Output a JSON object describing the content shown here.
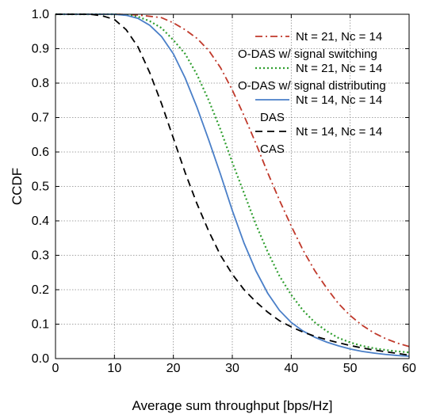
{
  "chart_data": {
    "type": "line",
    "xlabel": "Average sum throughput [bps/Hz]",
    "ylabel": "CCDF",
    "xlim": [
      0,
      60
    ],
    "ylim": [
      0,
      1
    ],
    "xticks": [
      "0",
      "10",
      "20",
      "30",
      "40",
      "50",
      "60"
    ],
    "yticks": [
      "0.0",
      "0.1",
      "0.2",
      "0.3",
      "0.4",
      "0.5",
      "0.6",
      "0.7",
      "0.8",
      "0.9",
      "1.0"
    ],
    "grid": true,
    "legend_position": "top-right",
    "series": [
      {
        "name": "Nt = 21, Nc = 14",
        "label": "O-DAS w/ signal switching",
        "color": "#c0392b",
        "dash": "dashdot",
        "x": [
          0,
          10,
          14,
          18,
          20,
          22,
          24,
          26,
          28,
          30,
          32,
          34,
          36,
          38,
          40,
          42,
          44,
          46,
          48,
          50,
          52,
          54,
          56,
          58,
          60
        ],
        "y": [
          1.0,
          1.0,
          0.998,
          0.99,
          0.975,
          0.955,
          0.93,
          0.895,
          0.845,
          0.78,
          0.705,
          0.625,
          0.54,
          0.46,
          0.385,
          0.315,
          0.255,
          0.205,
          0.16,
          0.125,
          0.097,
          0.075,
          0.058,
          0.045,
          0.035
        ]
      },
      {
        "name": "Nt = 21, Nc = 14",
        "label": "O-DAS w/ signal distributing",
        "color": "#2e9e2e",
        "dash": "dotted",
        "x": [
          0,
          10,
          12,
          14,
          16,
          18,
          20,
          22,
          24,
          26,
          28,
          30,
          32,
          34,
          36,
          38,
          40,
          42,
          44,
          46,
          48,
          50,
          52,
          54,
          56,
          58,
          60
        ],
        "y": [
          1.0,
          1.0,
          0.998,
          0.993,
          0.98,
          0.96,
          0.925,
          0.885,
          0.825,
          0.75,
          0.665,
          0.57,
          0.48,
          0.39,
          0.31,
          0.24,
          0.185,
          0.14,
          0.105,
          0.08,
          0.06,
          0.047,
          0.037,
          0.03,
          0.025,
          0.021,
          0.018
        ]
      },
      {
        "name": "Nt = 14, Nc = 14",
        "label": "DAS",
        "color": "#4a7fc8",
        "dash": "solid",
        "x": [
          0,
          10,
          12,
          14,
          16,
          18,
          20,
          22,
          24,
          26,
          28,
          30,
          32,
          34,
          36,
          38,
          40,
          42,
          44,
          46,
          48,
          50,
          52,
          54,
          56,
          58,
          60
        ],
        "y": [
          1.0,
          1.0,
          0.997,
          0.988,
          0.968,
          0.935,
          0.885,
          0.815,
          0.73,
          0.635,
          0.535,
          0.43,
          0.335,
          0.255,
          0.19,
          0.14,
          0.105,
          0.08,
          0.062,
          0.048,
          0.037,
          0.028,
          0.021,
          0.016,
          0.012,
          0.009,
          0.007
        ]
      },
      {
        "name": "Nt = 14, Nc = 14",
        "label": "CAS",
        "color": "#000000",
        "dash": "dashed",
        "x": [
          0,
          6,
          8,
          10,
          12,
          14,
          16,
          18,
          20,
          22,
          24,
          26,
          28,
          30,
          32,
          34,
          36,
          38,
          40,
          42,
          44,
          46,
          48,
          50,
          52,
          54,
          56,
          58,
          60
        ],
        "y": [
          1.0,
          1.0,
          0.995,
          0.985,
          0.955,
          0.905,
          0.83,
          0.74,
          0.64,
          0.54,
          0.45,
          0.37,
          0.3,
          0.245,
          0.2,
          0.165,
          0.135,
          0.11,
          0.092,
          0.077,
          0.065,
          0.055,
          0.046,
          0.038,
          0.031,
          0.025,
          0.02,
          0.015,
          0.01
        ]
      }
    ]
  }
}
